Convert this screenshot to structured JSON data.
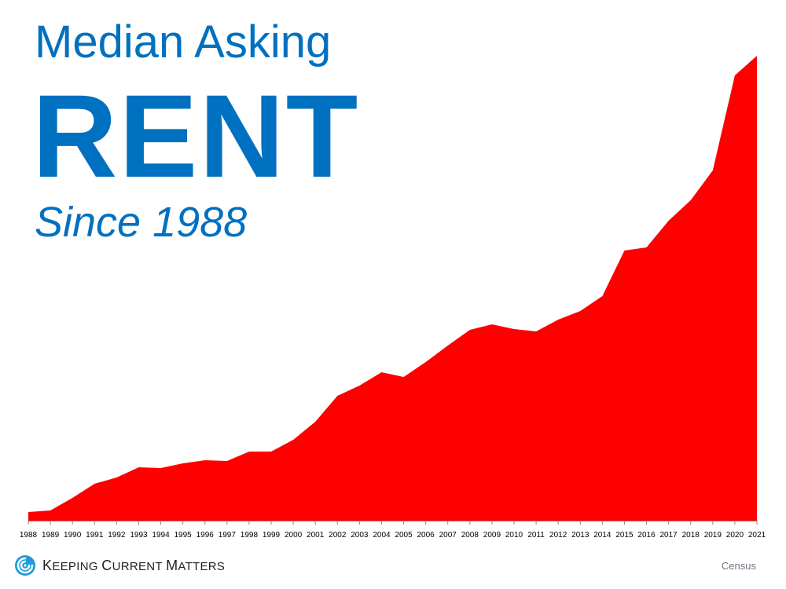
{
  "title": {
    "line1": "Median Asking",
    "line2": "RENT",
    "line3": "Since 1988",
    "color": "#0070c0"
  },
  "chart_data": {
    "type": "area",
    "title": "Median Asking RENT Since 1988",
    "xlabel": "",
    "ylabel": "",
    "y_axis_visible": false,
    "y_units": "relative (pixel height above baseline; no y-axis values shown)",
    "grid": false,
    "legend": null,
    "fill_color": "#ff0000",
    "categories": [
      "1988",
      "1989",
      "1990",
      "1991",
      "1992",
      "1993",
      "1994",
      "1995",
      "1996",
      "1997",
      "1998",
      "1999",
      "2000",
      "2001",
      "2002",
      "2003",
      "2004",
      "2005",
      "2006",
      "2007",
      "2008",
      "2009",
      "2010",
      "2011",
      "2012",
      "2013",
      "2014",
      "2015",
      "2016",
      "2017",
      "2018",
      "2019",
      "2020",
      "2021"
    ],
    "values": [
      11,
      13,
      29,
      47,
      55,
      68,
      67,
      73,
      77,
      76,
      88,
      88,
      103,
      126,
      159,
      172,
      189,
      183,
      202,
      223,
      243,
      250,
      244,
      241,
      256,
      267,
      286,
      344,
      348,
      382,
      408,
      446,
      567,
      592
    ],
    "ylim": [
      0,
      600
    ]
  },
  "footer": {
    "logo_text_parts": [
      {
        "big": "K",
        "small": "eeping "
      },
      {
        "big": "C",
        "small": "urrent "
      },
      {
        "big": "M",
        "small": "atters"
      }
    ],
    "logo_text": "Keeping Current Matters",
    "logo_icon": "swirl-icon",
    "logo_color": "#1e9ad6",
    "source": "Census"
  }
}
